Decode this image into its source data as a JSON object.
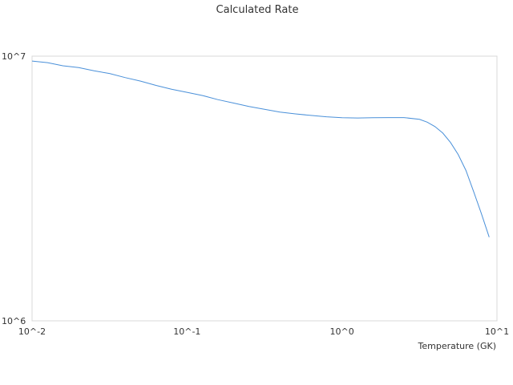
{
  "chart_data": {
    "type": "line",
    "title": "Calculated Rate",
    "xlabel": "Temperature (GK)",
    "ylabel": "",
    "x_scale": "log",
    "y_scale": "log",
    "xlim": [
      0.01,
      10
    ],
    "ylim": [
      1000000,
      10000000
    ],
    "x_ticks": [
      "10^-2",
      "10^-1",
      "10^0",
      "10^1"
    ],
    "y_ticks": [
      "10^6",
      "10^7"
    ],
    "grid": false,
    "legend": "none",
    "line_color": "#4a90d9",
    "series": [
      {
        "x": [
          0.01,
          0.0126,
          0.0158,
          0.02,
          0.0251,
          0.0316,
          0.0398,
          0.0501,
          0.0631,
          0.0794,
          0.1,
          0.126,
          0.158,
          0.2,
          0.251,
          0.316,
          0.398,
          0.501,
          0.631,
          0.794,
          1.0,
          1.26,
          1.58,
          2.0,
          2.51,
          3.16,
          3.55,
          3.98,
          4.47,
          5.01,
          5.62,
          6.31,
          7.08,
          7.94,
          8.91
        ],
        "y": [
          9580000,
          9450000,
          9200000,
          9050000,
          8800000,
          8600000,
          8300000,
          8050000,
          7750000,
          7500000,
          7300000,
          7100000,
          6850000,
          6650000,
          6450000,
          6300000,
          6150000,
          6050000,
          5970000,
          5900000,
          5850000,
          5840000,
          5850000,
          5860000,
          5860000,
          5770000,
          5630000,
          5420000,
          5120000,
          4720000,
          4250000,
          3700000,
          3070000,
          2540000,
          2070000
        ]
      }
    ]
  }
}
